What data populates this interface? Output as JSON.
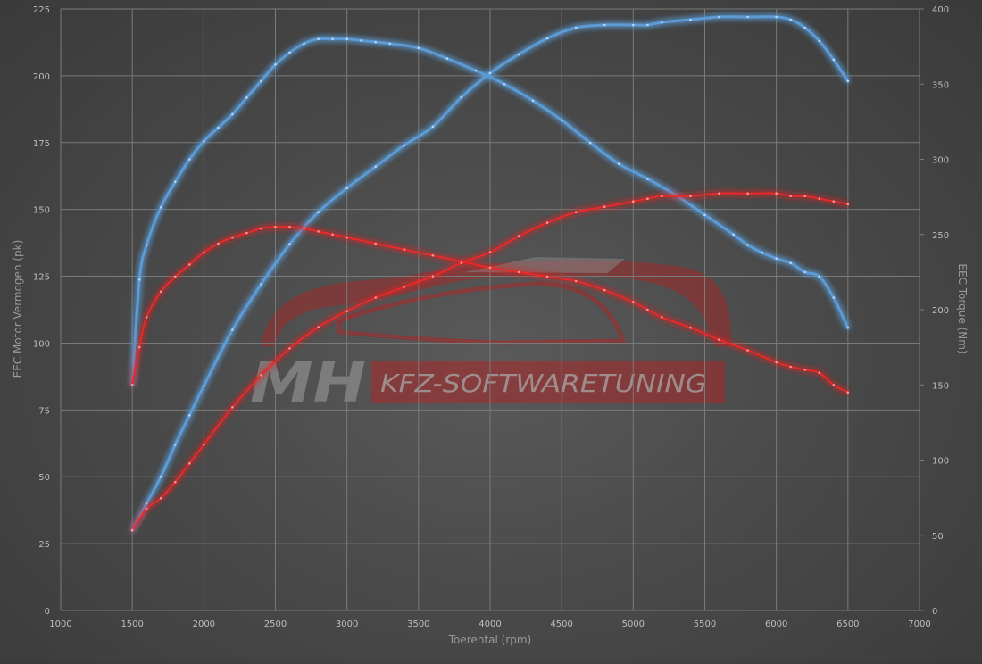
{
  "watermark": {
    "logo_initials": "MH",
    "logo_text": "KFZ-SOFTWARETUNING"
  },
  "colors": {
    "stock_series": "#5b9bd5",
    "tuned_series": "#e8292b",
    "grid": "#7a7a7a",
    "background": "#4a4a4a"
  },
  "chart_data": {
    "type": "line",
    "xlabel": "Toerental (rpm)",
    "ylabel_left": "EEC Motor Vermogen (pk)",
    "ylabel_right": "EEC Torque (Nm)",
    "xlim": [
      1000,
      7000
    ],
    "ylim_left": [
      0,
      225
    ],
    "ylim_right": [
      0,
      400
    ],
    "x_ticks": [
      1000,
      1500,
      2000,
      2500,
      3000,
      3500,
      4000,
      4500,
      5000,
      5500,
      6000,
      6500,
      7000
    ],
    "y_ticks_left": [
      0,
      25,
      50,
      75,
      100,
      125,
      150,
      175,
      200,
      225
    ],
    "y_ticks_right": [
      0,
      50,
      100,
      150,
      200,
      250,
      300,
      350,
      400
    ],
    "grid": true,
    "legend": "none",
    "series": [
      {
        "color": "#5b9bd5",
        "axis": "right",
        "x": [
          1500,
          1550,
          1600,
          1700,
          1800,
          1900,
          2000,
          2100,
          2200,
          2300,
          2400,
          2500,
          2600,
          2700,
          2800,
          2900,
          3000,
          3100,
          3200,
          3300,
          3500,
          3700,
          3900,
          4100,
          4300,
          4500,
          4700,
          4900,
          5100,
          5300,
          5500,
          5700,
          5800,
          5900,
          6000,
          6100,
          6200,
          6300,
          6400,
          6500
        ],
        "y": [
          150,
          220,
          243,
          268,
          285,
          300,
          312,
          321,
          330,
          341,
          352,
          363,
          371,
          377,
          380,
          380,
          380,
          379,
          378,
          377,
          374,
          367,
          359,
          350,
          339,
          326,
          311,
          297,
          287,
          276,
          263,
          250,
          243,
          238,
          234,
          231,
          225,
          222,
          208,
          188
        ]
      },
      {
        "color": "#5b9bd5",
        "axis": "left",
        "x": [
          1500,
          1600,
          1700,
          1800,
          1900,
          2000,
          2200,
          2400,
          2600,
          2800,
          3000,
          3200,
          3400,
          3600,
          3800,
          4000,
          4200,
          4400,
          4600,
          4800,
          5000,
          5100,
          5200,
          5400,
          5600,
          5800,
          6000,
          6100,
          6200,
          6300,
          6400,
          6500
        ],
        "y": [
          30,
          40,
          50,
          62,
          73,
          84,
          105,
          122,
          137,
          149,
          158,
          166,
          174,
          181,
          192,
          201,
          208,
          214,
          218,
          219,
          219,
          219,
          220,
          221,
          222,
          222,
          222,
          221,
          218,
          213,
          206,
          198
        ]
      },
      {
        "color": "#e8292b",
        "axis": "right",
        "x": [
          1500,
          1550,
          1600,
          1700,
          1800,
          1900,
          2000,
          2100,
          2200,
          2300,
          2400,
          2500,
          2600,
          2700,
          2800,
          2900,
          3000,
          3200,
          3400,
          3600,
          3800,
          4000,
          4200,
          4400,
          4600,
          4800,
          5000,
          5100,
          5200,
          5400,
          5600,
          5800,
          6000,
          6100,
          6200,
          6300,
          6400,
          6500
        ],
        "y": [
          150,
          175,
          195,
          212,
          222,
          230,
          238,
          244,
          248,
          251,
          254,
          255,
          255,
          254,
          252,
          250,
          248,
          244,
          240,
          236,
          232,
          228,
          225,
          222,
          219,
          213,
          205,
          200,
          195,
          188,
          180,
          173,
          165,
          162,
          160,
          158,
          150,
          145
        ]
      },
      {
        "color": "#e8292b",
        "axis": "left",
        "x": [
          1500,
          1600,
          1700,
          1800,
          1900,
          2000,
          2200,
          2400,
          2600,
          2800,
          3000,
          3200,
          3400,
          3600,
          3800,
          4000,
          4200,
          4400,
          4600,
          4800,
          5000,
          5100,
          5200,
          5400,
          5600,
          5800,
          6000,
          6100,
          6200,
          6300,
          6400,
          6500
        ],
        "y": [
          30,
          38,
          42,
          48,
          55,
          62,
          76,
          88,
          98,
          106,
          112,
          117,
          121,
          125,
          130,
          134,
          140,
          145,
          149,
          151,
          153,
          154,
          155,
          155,
          156,
          156,
          156,
          155,
          155,
          154,
          153,
          152
        ]
      }
    ]
  }
}
